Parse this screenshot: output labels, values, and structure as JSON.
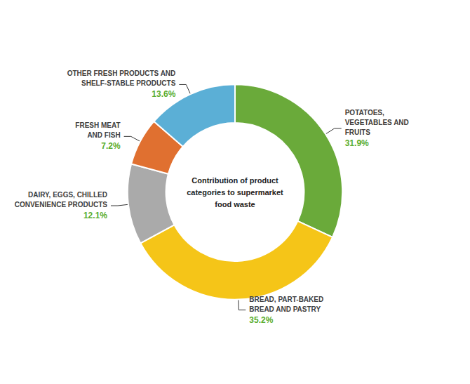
{
  "chart_data": {
    "type": "donut",
    "categories": [
      "POTATOES,\nVEGETABLES AND\nFRUITS",
      "BREAD, PART-BAKED\nBREAD AND PASTRY",
      "DAIRY, EGGS, CHILLED\nCONVENIENCE PRODUCTS",
      "FRESH MEAT\nAND FISH",
      "OTHER FRESH PRODUCTS AND\nSHELF-STABLE PRODUCTS"
    ],
    "values": [
      31.9,
      35.2,
      12.1,
      7.2,
      13.6
    ],
    "value_labels": [
      "31.9%",
      "35.2%",
      "12.1%",
      "7.2%",
      "13.6%"
    ],
    "colors": [
      "#6aaa3a",
      "#f5c518",
      "#aaaaaa",
      "#e07030",
      "#5bafd6"
    ],
    "data_labels": true,
    "annotations": [
      "Contribution of product\ncategories to supermarket\nfood waste"
    ]
  }
}
